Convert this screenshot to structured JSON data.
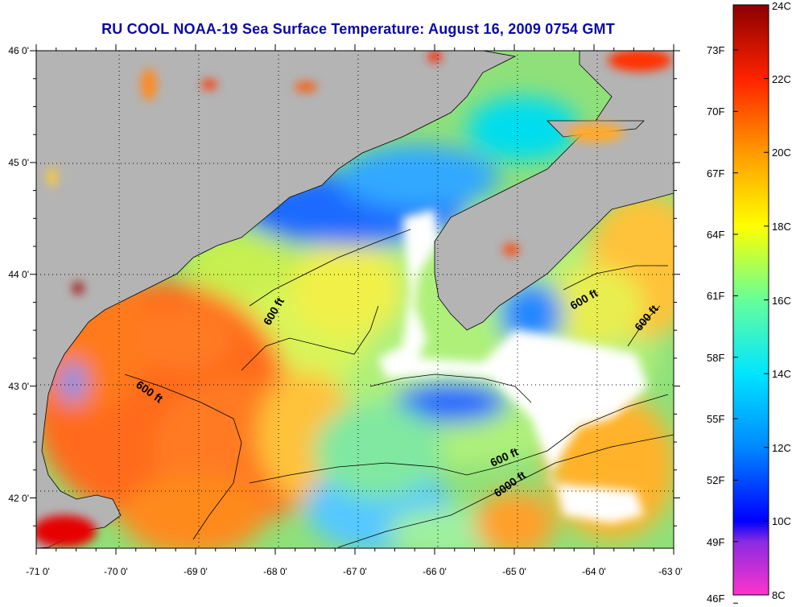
{
  "title": "RU COOL  NOAA-19  Sea Surface Temperature:  August 16, 2009 0754 GMT",
  "map": {
    "lon_ticks": [
      {
        "label": "-71 0'",
        "value": -71
      },
      {
        "label": "-70 0'",
        "value": -70
      },
      {
        "label": "-69 0'",
        "value": -69
      },
      {
        "label": "-68 0'",
        "value": -68
      },
      {
        "label": "-67 0'",
        "value": -67
      },
      {
        "label": "-66 0'",
        "value": -66
      },
      {
        "label": "-65 0'",
        "value": -65
      },
      {
        "label": "-64 0'",
        "value": -64
      },
      {
        "label": "-63 0'",
        "value": -63
      }
    ],
    "lat_ticks": [
      {
        "label": "46 0'",
        "value": 46
      },
      {
        "label": "45 0'",
        "value": 45
      },
      {
        "label": "44 0'",
        "value": 44
      },
      {
        "label": "43 0'",
        "value": 43
      },
      {
        "label": "42 0'",
        "value": 42
      }
    ],
    "depth_contour_labels": [
      "600 ft",
      "600 ft",
      "600 ft",
      "600 ft",
      "600 ft",
      "6000 ft"
    ],
    "land_color": "#b4b4b4",
    "cloud_color": "#ffffff",
    "grid": "dotted"
  },
  "colorbar": {
    "celsius_labels": [
      "24C",
      "22C",
      "20C",
      "18C",
      "16C",
      "14C",
      "12C",
      "10C",
      "8C"
    ],
    "fahrenheit_labels": [
      "73F",
      "70F",
      "67F",
      "64F",
      "61F",
      "58F",
      "55F",
      "52F",
      "49F",
      "46F"
    ],
    "celsius_range": [
      8,
      24
    ],
    "colors": [
      "#ff33cc",
      "#8a2be2",
      "#0000ff",
      "#0077ff",
      "#00e5ff",
      "#66ff99",
      "#ccff33",
      "#ffff00",
      "#ffcc00",
      "#ff8800",
      "#ff3300",
      "#e60000",
      "#8b0000"
    ]
  }
}
